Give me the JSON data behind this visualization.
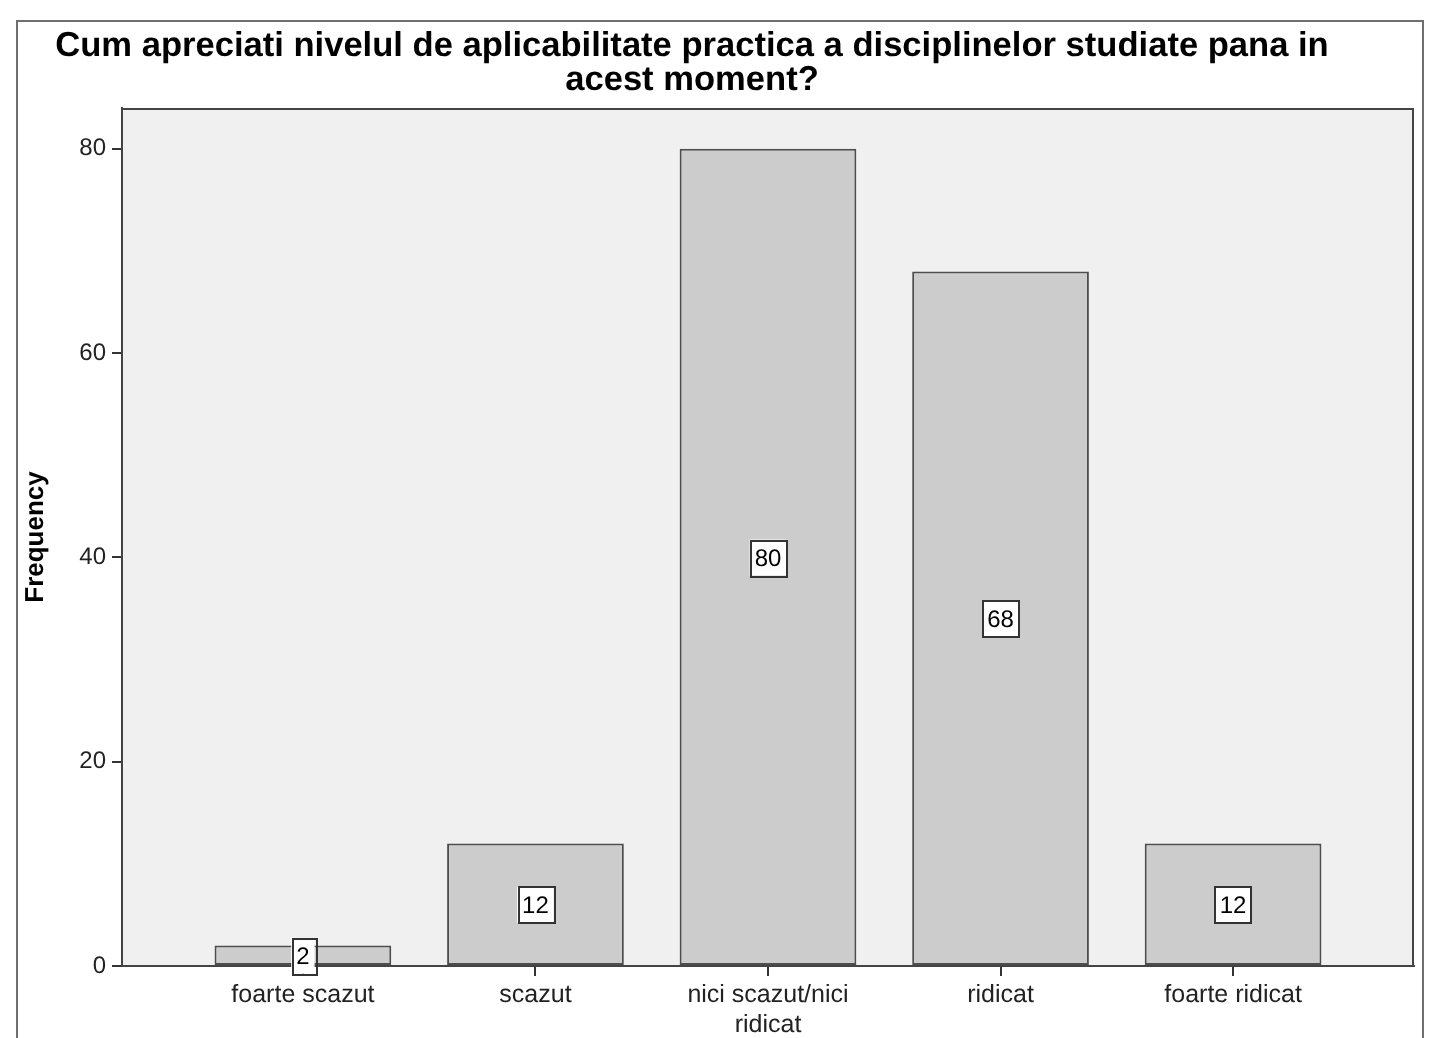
{
  "chart_data": {
    "type": "bar",
    "title": "Cum apreciati nivelul de aplicabilitate practica a disciplinelor studiate pana in acest moment?",
    "ylabel": "Frequency",
    "categories": [
      "foarte scazut",
      "scazut",
      "nici scazut/nici ridicat",
      "ridicat",
      "foarte ridicat"
    ],
    "values": [
      2,
      12,
      80,
      68,
      12
    ],
    "color": "#cccccc",
    "ylim": [
      0,
      84
    ],
    "yticks": [
      0,
      20,
      40,
      60,
      80
    ],
    "data_labels": true
  }
}
